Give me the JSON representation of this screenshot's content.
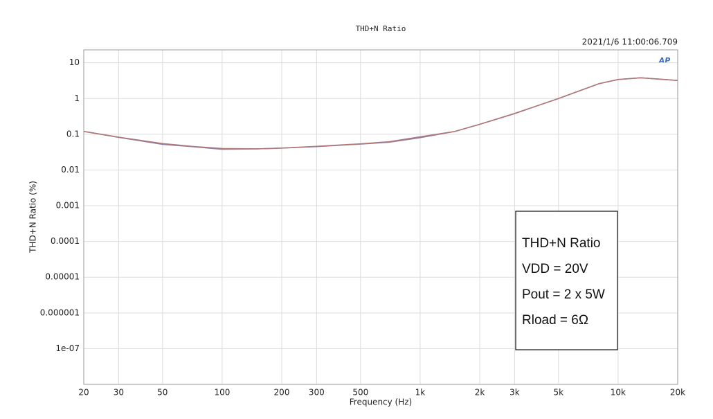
{
  "chart_data": {
    "type": "line",
    "title": "THD+N Ratio",
    "timestamp": "2021/1/6 11:00:06.709",
    "logo": "AP",
    "xlabel": "Frequency (Hz)",
    "ylabel": "THD+N Ratio (%)",
    "xscale": "log",
    "yscale": "log",
    "grid": true,
    "x": [
      20,
      30,
      50,
      70,
      100,
      150,
      200,
      300,
      500,
      700,
      1000,
      1500,
      2000,
      3000,
      5000,
      8000,
      10000,
      13000,
      20000
    ],
    "series": [
      {
        "color": "#8c80a8",
        "values": [
          0.12,
          0.082,
          0.052,
          0.045,
          0.038,
          0.039,
          0.041,
          0.045,
          0.053,
          0.06,
          0.08,
          0.12,
          0.19,
          0.38,
          1.0,
          2.6,
          3.4,
          3.8,
          3.2
        ]
      },
      {
        "color": "#b07878",
        "values": [
          0.12,
          0.083,
          0.055,
          0.046,
          0.04,
          0.039,
          0.041,
          0.046,
          0.054,
          0.062,
          0.085,
          0.12,
          0.19,
          0.38,
          1.0,
          2.6,
          3.4,
          3.8,
          3.2
        ]
      }
    ],
    "xlim": [
      20,
      20000
    ],
    "ylim": [
      1e-08,
      23
    ],
    "xticks": [
      20,
      30,
      50,
      100,
      200,
      300,
      500,
      {
        "value": 1000,
        "label": "1k"
      },
      {
        "value": 2000,
        "label": "2k"
      },
      {
        "value": 3000,
        "label": "3k"
      },
      {
        "value": 5000,
        "label": "5k"
      },
      {
        "value": 10000,
        "label": "10k"
      },
      {
        "value": 20000,
        "label": "20k"
      }
    ],
    "yticks": [
      10,
      1,
      0.1,
      0.01,
      0.001,
      0.0001,
      1e-05,
      1e-06,
      {
        "value": 1e-07,
        "label": "1e-07"
      }
    ],
    "annotation": [
      "THD+N Ratio",
      "VDD = 20V",
      "Pout = 2 x 5W",
      "Rload = 6Ω"
    ]
  }
}
